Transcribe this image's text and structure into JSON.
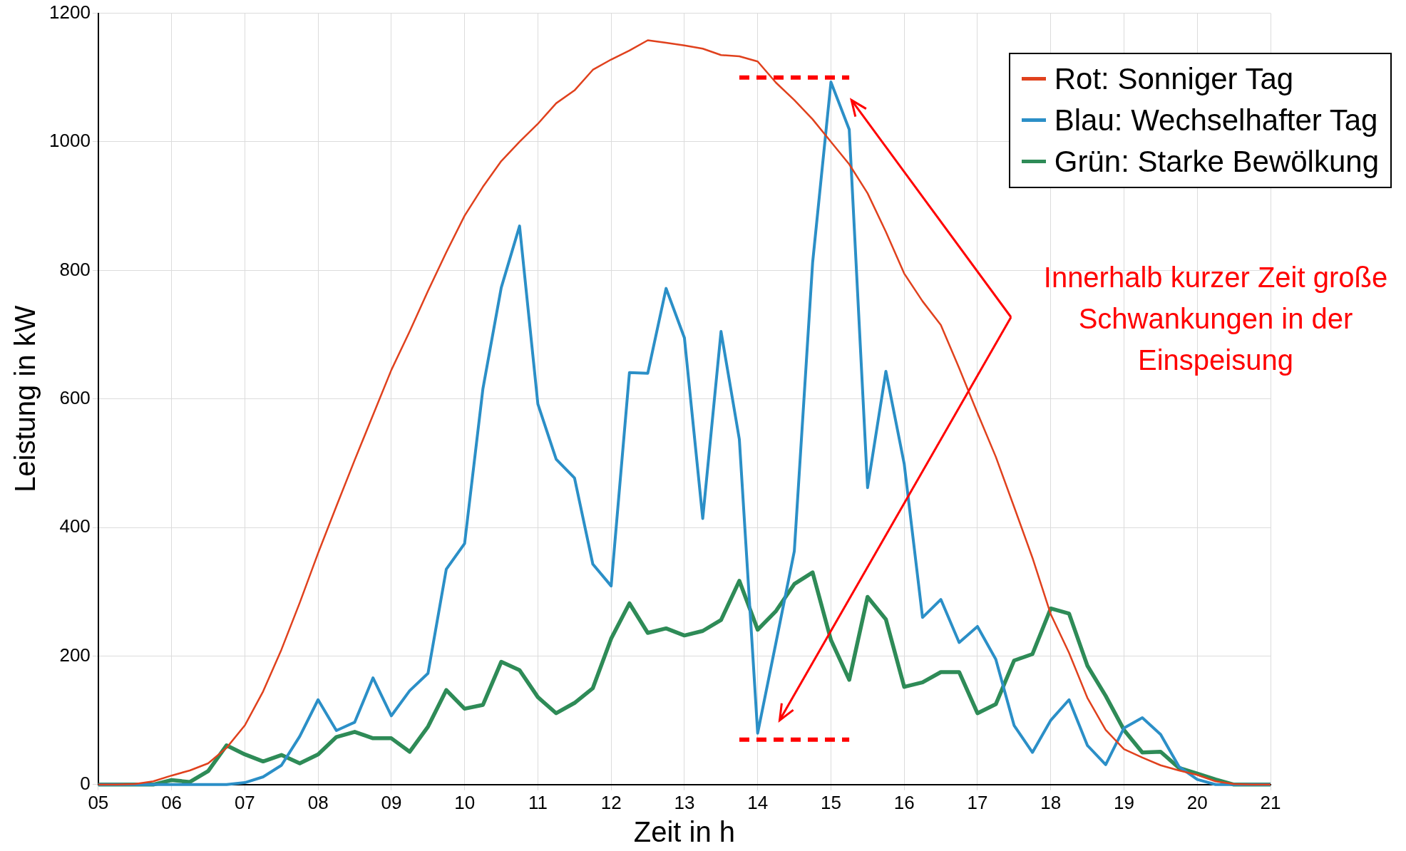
{
  "chart_data": {
    "type": "line",
    "xlabel": "Zeit in h",
    "ylabel": "Leistung in kW",
    "x": [
      5,
      5.25,
      5.5,
      5.75,
      6,
      6.25,
      6.5,
      6.75,
      7,
      7.25,
      7.5,
      7.75,
      8,
      8.25,
      8.5,
      8.75,
      9,
      9.25,
      9.5,
      9.75,
      10,
      10.25,
      10.5,
      10.75,
      11,
      11.25,
      11.5,
      11.75,
      12,
      12.25,
      12.5,
      12.75,
      13,
      13.25,
      13.5,
      13.75,
      14,
      14.25,
      14.5,
      14.75,
      15,
      15.25,
      15.5,
      15.75,
      16,
      16.25,
      16.5,
      16.75,
      17,
      17.25,
      17.5,
      17.75,
      18,
      18.25,
      18.5,
      18.75,
      19,
      19.25,
      19.5,
      19.75,
      20,
      20.25,
      20.5,
      20.75,
      21
    ],
    "series": [
      {
        "name": "Rot: Sonniger Tag",
        "color": "#e0411d",
        "values": [
          0,
          0,
          1,
          5,
          14,
          22,
          33,
          57,
          92,
          145,
          210,
          283,
          360,
          433,
          505,
          575,
          645,
          705,
          768,
          828,
          885,
          930,
          970,
          1000,
          1028,
          1060,
          1080,
          1112,
          1128,
          1142,
          1158,
          1154,
          1150,
          1145,
          1135,
          1133,
          1125,
          1092,
          1065,
          1035,
          1000,
          965,
          920,
          860,
          795,
          752,
          715,
          648,
          578,
          510,
          432,
          353,
          265,
          205,
          135,
          85,
          55,
          42,
          30,
          22,
          15,
          5,
          1,
          0,
          0
        ]
      },
      {
        "name": "Blau: Wechselhafter Tag",
        "color": "#2b8fc7",
        "values": [
          0,
          0,
          0,
          0,
          0,
          0,
          0,
          0,
          3,
          12,
          30,
          75,
          132,
          84,
          97,
          166,
          107,
          146,
          173,
          335,
          375,
          616,
          773,
          869,
          592,
          506,
          477,
          343,
          309,
          641,
          640,
          772,
          695,
          414,
          705,
          537,
          80,
          221,
          363,
          812,
          1093,
          1019,
          462,
          643,
          499,
          260,
          288,
          221,
          246,
          195,
          92,
          50,
          100,
          132,
          61,
          31,
          88,
          104,
          78,
          28,
          8,
          0,
          0,
          0,
          0
        ]
      },
      {
        "name": "Grün: Starke Bewölkung",
        "color": "#2e8b57",
        "values": [
          0,
          0,
          0,
          0,
          7,
          4,
          21,
          61,
          47,
          36,
          46,
          33,
          47,
          74,
          82,
          72,
          72,
          51,
          90,
          147,
          118,
          124,
          191,
          178,
          136,
          111,
          127,
          150,
          227,
          282,
          236,
          243,
          232,
          239,
          256,
          317,
          241,
          270,
          312,
          330,
          225,
          163,
          292,
          257,
          152,
          159,
          175,
          175,
          111,
          125,
          193,
          203,
          274,
          266,
          185,
          138,
          85,
          50,
          51,
          26,
          17,
          8,
          0,
          0,
          0
        ]
      }
    ],
    "xlim": [
      5,
      21
    ],
    "xticks": [
      {
        "value": 5,
        "label": "05"
      },
      {
        "value": 6,
        "label": "06"
      },
      {
        "value": 7,
        "label": "07"
      },
      {
        "value": 8,
        "label": "08"
      },
      {
        "value": 9,
        "label": "09"
      },
      10,
      11,
      12,
      13,
      14,
      15,
      16,
      17,
      18,
      19,
      20,
      21
    ],
    "ylim": [
      0,
      1200
    ],
    "yticks": [
      0,
      200,
      400,
      600,
      800,
      1000,
      1200
    ],
    "grid": true,
    "legend": "top right",
    "marker": "none",
    "line_style": "solid",
    "ref_lines": [
      {
        "axis": "y",
        "value": 1100,
        "color": "#ff0000",
        "line_style": "dashed"
      },
      {
        "axis": "y",
        "value": 70,
        "color": "#ff0000",
        "line_style": "dashed"
      }
    ],
    "annotations": [
      "Innerhalb kurzer Zeit große Schwankungen in der Einspeisung"
    ]
  }
}
